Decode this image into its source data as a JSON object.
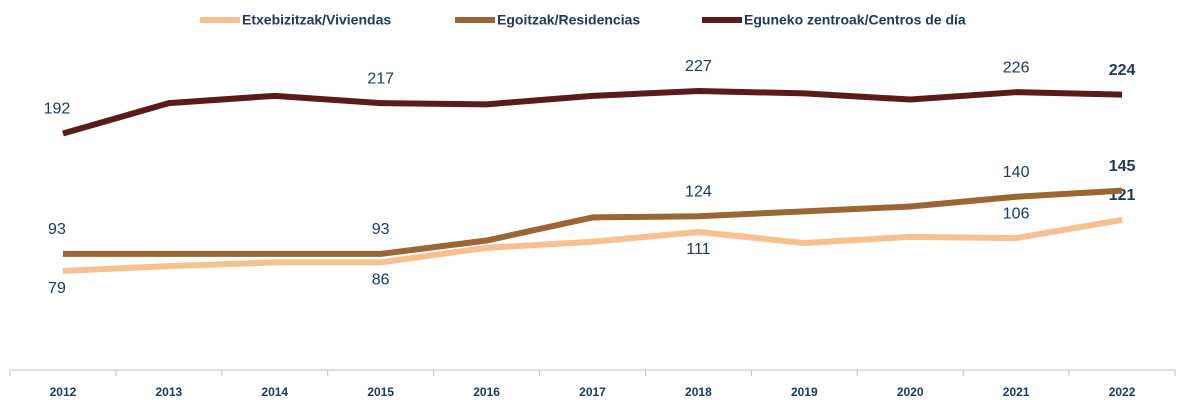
{
  "chart_data": {
    "type": "line",
    "categories": [
      "2012",
      "2013",
      "2014",
      "2015",
      "2016",
      "2017",
      "2018",
      "2019",
      "2020",
      "2021",
      "2022"
    ],
    "ylim": [
      0,
      250
    ],
    "legend": "top",
    "series": [
      {
        "name": "Etxebizitzak/Viviendas",
        "color": "#f9c08f",
        "values": [
          79,
          83,
          86,
          86,
          98,
          103,
          111,
          102,
          107,
          106,
          121
        ],
        "value_labels": [
          "79",
          null,
          null,
          "86",
          null,
          null,
          "111",
          null,
          null,
          "106",
          "121"
        ]
      },
      {
        "name": "Egoitzak/Residencias",
        "color": "#9b6534",
        "values": [
          93,
          93,
          93,
          93,
          104,
          123,
          124,
          128,
          132,
          140,
          145
        ],
        "value_labels": [
          "93",
          null,
          null,
          "93",
          null,
          null,
          "124",
          null,
          null,
          "140",
          "145"
        ]
      },
      {
        "name": "Eguneko zentroak/Centros de día",
        "color": "#5c1a1d",
        "values": [
          192,
          217,
          223,
          217,
          216,
          223,
          227,
          225,
          220,
          226,
          224
        ],
        "value_labels": [
          "192",
          null,
          null,
          "217",
          null,
          null,
          "227",
          null,
          null,
          "226",
          "224"
        ]
      }
    ]
  }
}
